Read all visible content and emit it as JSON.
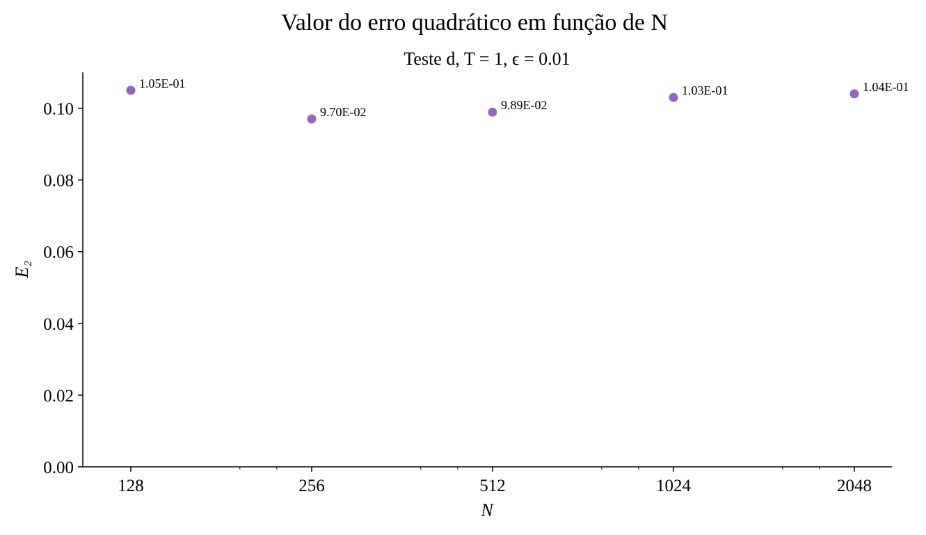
{
  "chart_data": {
    "type": "scatter",
    "title": "Valor do erro quadrático em função de N",
    "subtitle": "Teste d, T = 1, ϵ = 0.01",
    "xlabel": "N",
    "ylabel": "E₂",
    "xscale": "log2",
    "x": [
      128,
      256,
      512,
      1024,
      2048
    ],
    "y": [
      0.105,
      0.097,
      0.0989,
      0.103,
      0.104
    ],
    "point_labels": [
      "1.05E-01",
      "9.70E-02",
      "9.89E-02",
      "1.03E-01",
      "1.04E-01"
    ],
    "x_ticks": [
      "128",
      "256",
      "512",
      "1024",
      "2048"
    ],
    "y_ticks": [
      "0.00",
      "0.02",
      "0.04",
      "0.06",
      "0.08",
      "0.10"
    ],
    "ylim": [
      0,
      0.11
    ],
    "grid": false,
    "legend": "none",
    "marker_color": "#9467bd"
  }
}
